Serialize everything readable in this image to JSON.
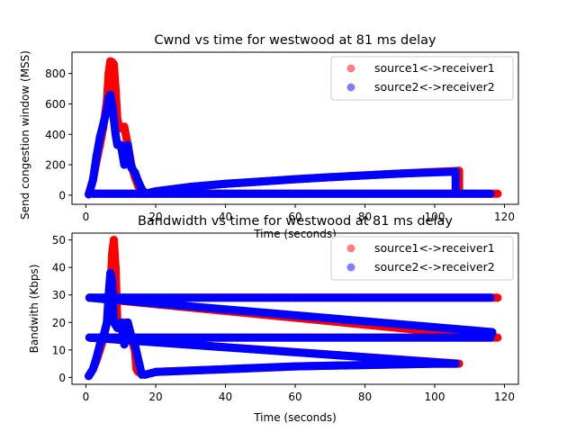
{
  "chart_data": [
    {
      "type": "scatter",
      "title": "Cwnd vs time for westwood at 81 ms delay",
      "xlabel": "Time (seconds)",
      "ylabel": "Send congestion window (MSS)",
      "xlim": [
        -4,
        124
      ],
      "ylim": [
        -60,
        940
      ],
      "xticks": [
        "0",
        "20",
        "40",
        "60",
        "80",
        "100",
        "120"
      ],
      "yticks": [
        "0",
        "200",
        "400",
        "600",
        "800"
      ],
      "legend_position": "top-right",
      "series": [
        {
          "name": "source1<->receiver1",
          "color": "#ff0000",
          "x": [
            0.8,
            2,
            3,
            4,
            5,
            6,
            6.5,
            7,
            7.5,
            8,
            8.5,
            9,
            9.5,
            10,
            10.5,
            11,
            12,
            13,
            14,
            15,
            16,
            17,
            20,
            30,
            40,
            50,
            60,
            70,
            80,
            90,
            100,
            107,
            107,
            60,
            20,
            16,
            2,
            40,
            80,
            118
          ],
          "y": [
            5,
            100,
            220,
            330,
            450,
            620,
            800,
            880,
            875,
            860,
            700,
            500,
            450,
            440,
            445,
            450,
            330,
            200,
            120,
            60,
            20,
            10,
            25,
            55,
            75,
            90,
            105,
            118,
            130,
            142,
            153,
            160,
            10,
            10,
            10,
            10,
            10,
            10,
            10,
            10
          ]
        },
        {
          "name": "source2<->receiver2",
          "color": "#0000ff",
          "x": [
            0.8,
            2,
            3,
            4,
            5,
            6,
            6.5,
            7,
            7.5,
            8,
            8.5,
            9,
            10,
            11,
            12,
            13,
            14,
            15,
            16,
            17,
            20,
            30,
            40,
            50,
            60,
            70,
            80,
            90,
            100,
            106,
            106,
            60,
            16,
            2,
            40,
            80,
            116
          ],
          "y": [
            5,
            100,
            250,
            380,
            470,
            560,
            640,
            660,
            600,
            500,
            400,
            330,
            330,
            200,
            330,
            180,
            150,
            90,
            40,
            10,
            25,
            55,
            75,
            90,
            105,
            118,
            130,
            142,
            150,
            155,
            10,
            10,
            10,
            10,
            10,
            10,
            10
          ]
        }
      ]
    },
    {
      "type": "scatter",
      "title": "Bandwidth vs time for westwood at 81 ms delay",
      "xlabel": "Time (seconds)",
      "ylabel": "Bandwith (Kbps)",
      "xlim": [
        -4,
        124
      ],
      "ylim": [
        -2.5,
        52.5
      ],
      "xticks": [
        "0",
        "20",
        "40",
        "60",
        "80",
        "100",
        "120"
      ],
      "yticks": [
        "0",
        "10",
        "20",
        "30",
        "40",
        "50"
      ],
      "legend_position": "top-right",
      "series": [
        {
          "name": "source1<->receiver1",
          "color": "#ff0000",
          "x": [
            0.8,
            2,
            3,
            4,
            5,
            6,
            7,
            7.5,
            8,
            8.5,
            9,
            10,
            11,
            12,
            13,
            14,
            14.5,
            15,
            16,
            17,
            20,
            40,
            60,
            80,
            100,
            107,
            1,
            60,
            118,
            1,
            60,
            118
          ],
          "y": [
            0.5,
            3,
            6,
            10,
            14,
            20,
            30,
            45,
            50,
            40,
            20,
            18,
            20,
            18,
            14,
            10,
            3,
            2,
            1.5,
            1,
            2,
            3,
            4,
            4.5,
            5,
            5,
            14.5,
            14.5,
            14.5,
            29,
            29,
            29
          ]
        },
        {
          "name": "source2<->receiver2",
          "color": "#0000ff",
          "x": [
            0.8,
            2,
            3,
            4,
            5,
            6,
            6.5,
            7,
            7.5,
            8,
            9,
            10,
            11,
            12,
            13,
            14,
            16,
            17,
            20,
            40,
            60,
            80,
            100,
            106,
            1,
            60,
            116,
            116.5,
            1,
            60,
            116
          ],
          "y": [
            0.5,
            3,
            7,
            12,
            15,
            20,
            30,
            38,
            35,
            20,
            18,
            20,
            12,
            20,
            15,
            12,
            1,
            1,
            2,
            3,
            4,
            4.5,
            5,
            5,
            14.5,
            14.5,
            14.5,
            16.5,
            29,
            29,
            29
          ]
        }
      ]
    }
  ]
}
